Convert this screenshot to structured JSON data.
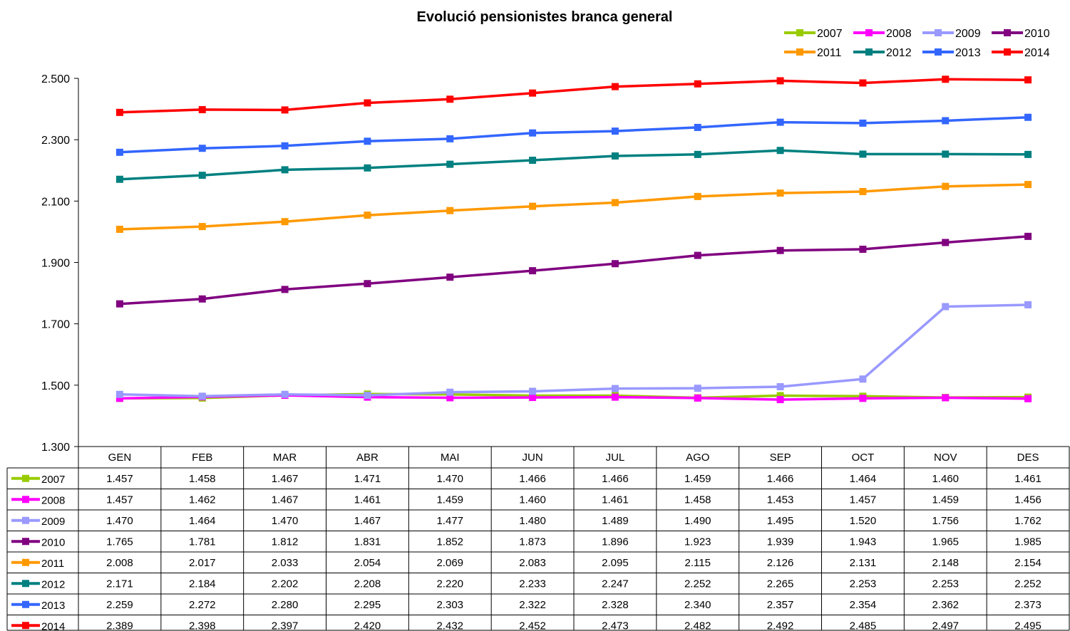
{
  "chart_data": {
    "type": "line",
    "title": "Evolució pensionistes branca general",
    "xlabel": "",
    "ylabel": "",
    "categories": [
      "GEN",
      "FEB",
      "MAR",
      "ABR",
      "MAI",
      "JUN",
      "JUL",
      "AGO",
      "SEP",
      "OCT",
      "NOV",
      "DES"
    ],
    "ylim": [
      1300,
      2500
    ],
    "yticks": [
      1300,
      1500,
      1700,
      1900,
      2100,
      2300,
      2500
    ],
    "ytick_labels": [
      "1.300",
      "1.500",
      "1.700",
      "1.900",
      "2.100",
      "2.300",
      "2.500"
    ],
    "grid": true,
    "legend_position": "top-right",
    "data_table": true,
    "series": [
      {
        "name": "2007",
        "color": "#99cc00",
        "values": [
          1457,
          1458,
          1467,
          1471,
          1470,
          1466,
          1466,
          1459,
          1466,
          1464,
          1460,
          1461
        ],
        "labels": [
          "1.457",
          "1.458",
          "1.467",
          "1.471",
          "1.470",
          "1.466",
          "1.466",
          "1.459",
          "1.466",
          "1.464",
          "1.460",
          "1.461"
        ]
      },
      {
        "name": "2008",
        "color": "#ff00ff",
        "values": [
          1457,
          1462,
          1467,
          1461,
          1459,
          1460,
          1461,
          1458,
          1453,
          1457,
          1459,
          1456
        ],
        "labels": [
          "1.457",
          "1.462",
          "1.467",
          "1.461",
          "1.459",
          "1.460",
          "1.461",
          "1.458",
          "1.453",
          "1.457",
          "1.459",
          "1.456"
        ]
      },
      {
        "name": "2009",
        "color": "#9999ff",
        "values": [
          1470,
          1464,
          1470,
          1467,
          1477,
          1480,
          1489,
          1490,
          1495,
          1520,
          1756,
          1762
        ],
        "labels": [
          "1.470",
          "1.464",
          "1.470",
          "1.467",
          "1.477",
          "1.480",
          "1.489",
          "1.490",
          "1.495",
          "1.520",
          "1.756",
          "1.762"
        ]
      },
      {
        "name": "2010",
        "color": "#800080",
        "values": [
          1765,
          1781,
          1812,
          1831,
          1852,
          1873,
          1896,
          1923,
          1939,
          1943,
          1965,
          1985
        ],
        "labels": [
          "1.765",
          "1.781",
          "1.812",
          "1.831",
          "1.852",
          "1.873",
          "1.896",
          "1.923",
          "1.939",
          "1.943",
          "1.965",
          "1.985"
        ]
      },
      {
        "name": "2011",
        "color": "#ff9900",
        "values": [
          2008,
          2017,
          2033,
          2054,
          2069,
          2083,
          2095,
          2115,
          2126,
          2131,
          2148,
          2154
        ],
        "labels": [
          "2.008",
          "2.017",
          "2.033",
          "2.054",
          "2.069",
          "2.083",
          "2.095",
          "2.115",
          "2.126",
          "2.131",
          "2.148",
          "2.154"
        ]
      },
      {
        "name": "2012",
        "color": "#008080",
        "values": [
          2171,
          2184,
          2202,
          2208,
          2220,
          2233,
          2247,
          2252,
          2265,
          2253,
          2253,
          2252
        ],
        "labels": [
          "2.171",
          "2.184",
          "2.202",
          "2.208",
          "2.220",
          "2.233",
          "2.247",
          "2.252",
          "2.265",
          "2.253",
          "2.253",
          "2.252"
        ]
      },
      {
        "name": "2013",
        "color": "#3366ff",
        "values": [
          2259,
          2272,
          2280,
          2295,
          2303,
          2322,
          2328,
          2340,
          2357,
          2354,
          2362,
          2373
        ],
        "labels": [
          "2.259",
          "2.272",
          "2.280",
          "2.295",
          "2.303",
          "2.322",
          "2.328",
          "2.340",
          "2.357",
          "2.354",
          "2.362",
          "2.373"
        ]
      },
      {
        "name": "2014",
        "color": "#ff0000",
        "values": [
          2389,
          2398,
          2397,
          2420,
          2432,
          2452,
          2473,
          2482,
          2492,
          2485,
          2497,
          2495
        ],
        "labels": [
          "2.389",
          "2.398",
          "2.397",
          "2.420",
          "2.432",
          "2.452",
          "2.473",
          "2.482",
          "2.492",
          "2.485",
          "2.497",
          "2.495"
        ]
      }
    ]
  }
}
